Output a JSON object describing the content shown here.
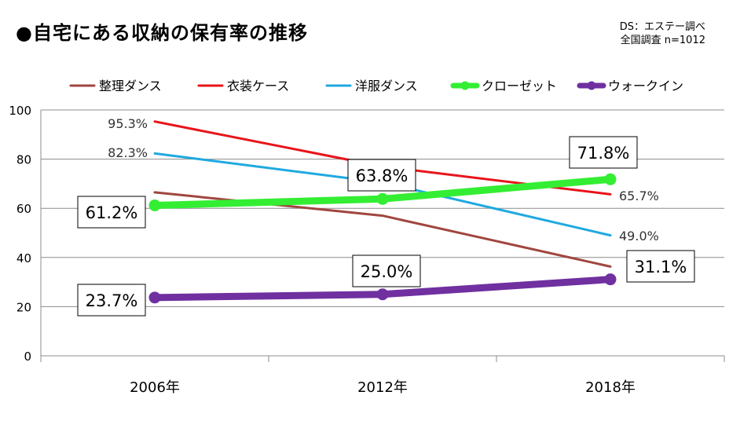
{
  "title": "●自宅にある収納の保有率の推移",
  "source": {
    "line1": "DS：エステー調べ",
    "line2": "全国調査 n=1012"
  },
  "chart_data": {
    "type": "line",
    "title": "自宅にある収納の保有率の推移",
    "categories": [
      "2006年",
      "2012年",
      "2018年"
    ],
    "ylim": [
      0,
      100
    ],
    "yticks": [
      "0",
      "20",
      "40",
      "60",
      "80",
      "100"
    ],
    "grid": true,
    "legend": "top",
    "series": [
      {
        "name": "整理ダンス",
        "values": [
          66.5,
          57.0,
          36.3
        ],
        "color": "#a0463f",
        "labels": [
          "",
          "",
          ""
        ],
        "boxed": false,
        "thick": false
      },
      {
        "name": "衣装ケース",
        "values": [
          95.3,
          77.0,
          65.7
        ],
        "color": "#e8141b",
        "labels": [
          "95.3%",
          "",
          "65.7%"
        ],
        "boxed": false,
        "thick": false
      },
      {
        "name": "洋服ダンス",
        "values": [
          82.3,
          70.5,
          49.0
        ],
        "color": "#1fa9e0",
        "labels": [
          "82.3%",
          "",
          "49.0%"
        ],
        "boxed": false,
        "thick": false
      },
      {
        "name": "クローゼット",
        "values": [
          61.2,
          63.8,
          71.8
        ],
        "color": "#33ee33",
        "labels": [
          "61.2%",
          "63.8%",
          "71.8%"
        ],
        "boxed": true,
        "thick": true
      },
      {
        "name": "ウォークイン",
        "values": [
          23.7,
          25.0,
          31.1
        ],
        "color": "#7030a0",
        "labels": [
          "23.7%",
          "25.0%",
          "31.1%"
        ],
        "boxed": true,
        "thick": true
      }
    ]
  }
}
